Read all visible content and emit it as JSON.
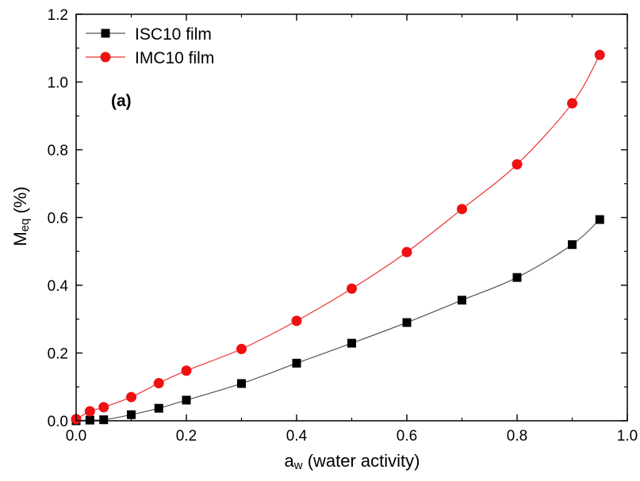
{
  "chart_data": {
    "type": "line",
    "annotation": "(a)",
    "xlabel": {
      "main": "a",
      "sub": "w",
      "rest": " (water activity)"
    },
    "ylabel": {
      "main": "M",
      "sub": "eq",
      "rest": " (%)"
    },
    "xlim": [
      0.0,
      1.0
    ],
    "ylim": [
      0.0,
      1.2
    ],
    "xticks": [
      0.0,
      0.2,
      0.4,
      0.6,
      0.8,
      1.0
    ],
    "yticks": [
      0.0,
      0.2,
      0.4,
      0.6,
      0.8,
      1.0,
      1.2
    ],
    "xtick_labels": [
      "0.0",
      "0.2",
      "0.4",
      "0.6",
      "0.8",
      "1.0"
    ],
    "ytick_labels": [
      "0.0",
      "0.2",
      "0.4",
      "0.6",
      "0.8",
      "1.0",
      "1.2"
    ],
    "grid": false,
    "legend_position": "top-left",
    "series": [
      {
        "name": "ISC10 film",
        "marker": "square",
        "marker_color": "#000000",
        "line_color": "#555555",
        "x": [
          0.0,
          0.025,
          0.05,
          0.1,
          0.15,
          0.2,
          0.3,
          0.4,
          0.5,
          0.6,
          0.7,
          0.8,
          0.9,
          0.95
        ],
        "y": [
          0.0,
          0.002,
          0.003,
          0.018,
          0.037,
          0.061,
          0.11,
          0.17,
          0.229,
          0.29,
          0.356,
          0.423,
          0.52,
          0.594
        ]
      },
      {
        "name": "IMC10 film",
        "marker": "circle",
        "marker_color": "#ee1111",
        "line_color": "#ee3333",
        "x": [
          0.0,
          0.025,
          0.05,
          0.1,
          0.15,
          0.2,
          0.3,
          0.4,
          0.5,
          0.6,
          0.7,
          0.8,
          0.9,
          0.95
        ],
        "y": [
          0.005,
          0.028,
          0.04,
          0.07,
          0.111,
          0.148,
          0.212,
          0.295,
          0.39,
          0.498,
          0.625,
          0.757,
          0.937,
          1.08
        ]
      }
    ]
  }
}
